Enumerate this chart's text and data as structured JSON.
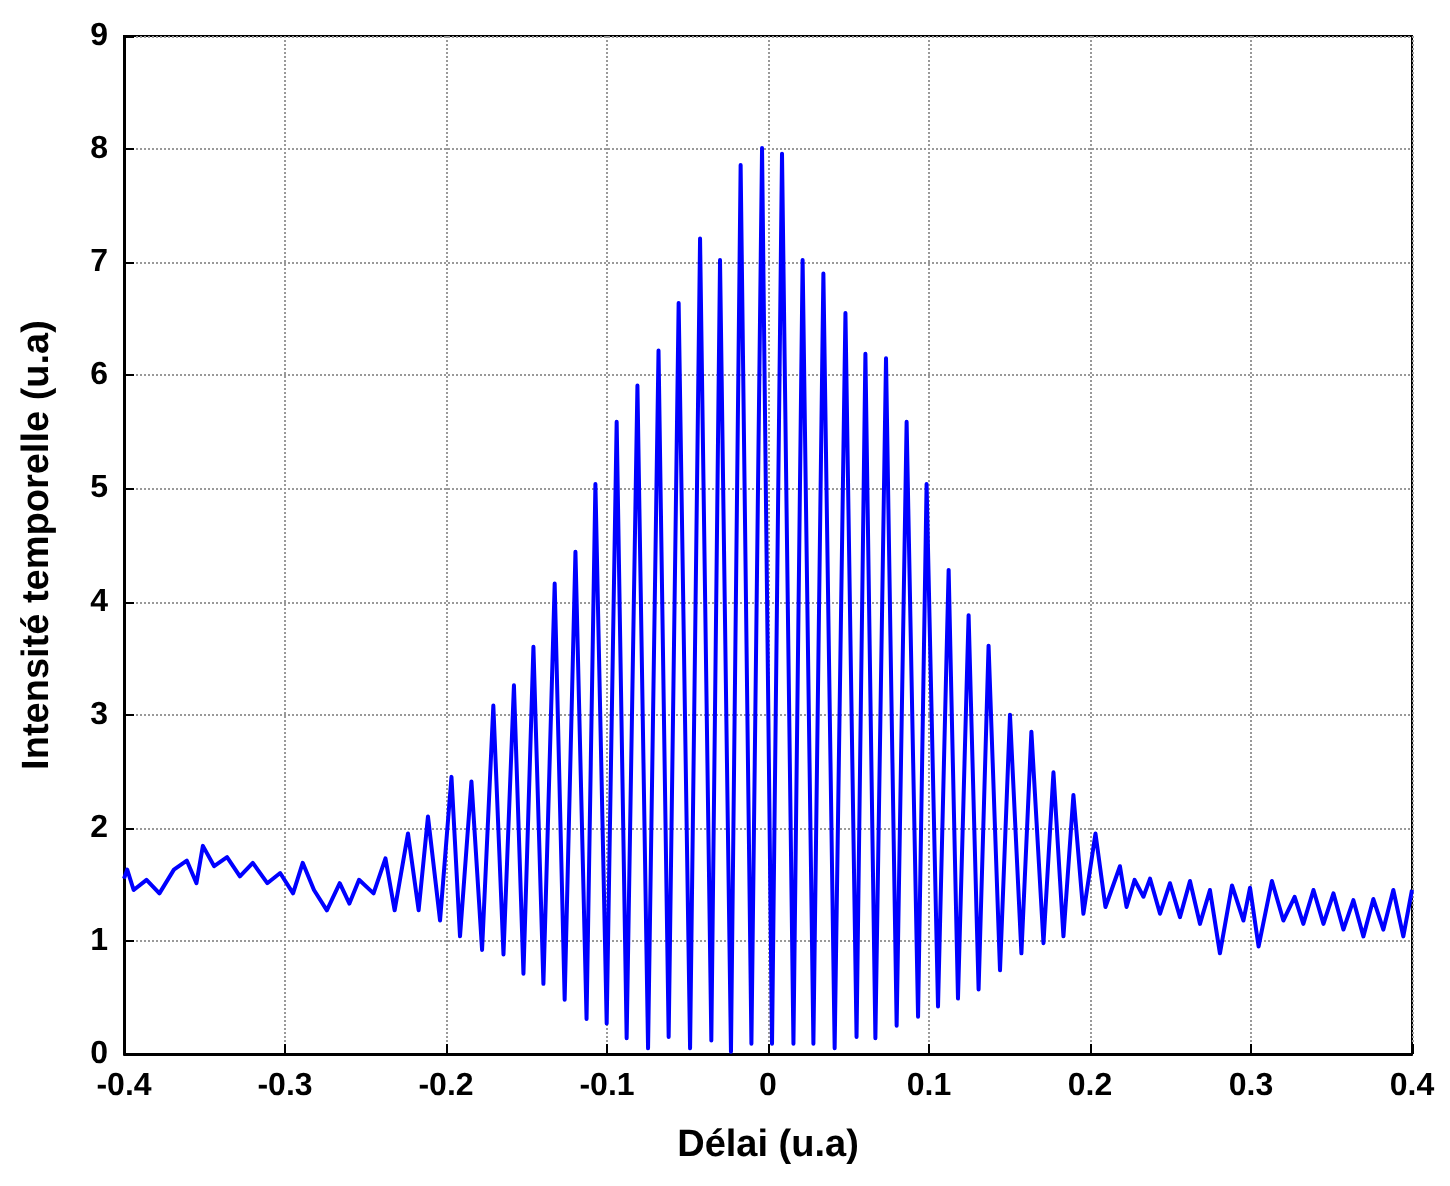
{
  "chart_data": {
    "type": "line",
    "xlabel": "Délai (u.a)",
    "ylabel": "Intensité temporelle (u.a)",
    "xlim": [
      -0.4,
      0.4
    ],
    "xticks": [
      -0.4,
      -0.3,
      -0.2,
      -0.1,
      0,
      0.1,
      0.2,
      0.3,
      0.4
    ],
    "ylim": [
      0,
      9
    ],
    "yticks": [
      0,
      1,
      2,
      3,
      4,
      5,
      6,
      7,
      8,
      9
    ],
    "grid": true,
    "marker": "none",
    "line_style": "solid",
    "series": [
      {
        "color": "#0000ff",
        "x": [
          -0.4,
          -0.398,
          -0.394,
          -0.386,
          -0.378,
          -0.369,
          -0.361,
          -0.355,
          -0.351,
          -0.344,
          -0.336,
          -0.328,
          -0.32,
          -0.311,
          -0.303,
          -0.295,
          -0.289,
          -0.282,
          -0.274,
          -0.266,
          -0.26,
          -0.254,
          -0.245,
          -0.2376,
          -0.2319,
          -0.2236,
          -0.217,
          -0.2112,
          -0.2037,
          -0.1966,
          -0.1913,
          -0.1842,
          -0.1776,
          -0.1706,
          -0.1643,
          -0.1578,
          -0.1519,
          -0.1457,
          -0.1395,
          -0.1325,
          -0.1263,
          -0.1196,
          -0.1127,
          -0.1072,
          -0.1002,
          -0.094,
          -0.0878,
          -0.0811,
          -0.0745,
          -0.068,
          -0.0617,
          -0.0555,
          -0.0484,
          -0.0422,
          -0.0352,
          -0.0298,
          -0.023,
          -0.017,
          -0.0103,
          -0.0037,
          0.0025,
          0.0087,
          0.0158,
          0.0215,
          0.0282,
          0.0344,
          0.0414,
          0.0481,
          0.055,
          0.0605,
          0.0667,
          0.0733,
          0.0799,
          0.0861,
          0.0932,
          0.0985,
          0.1056,
          0.1122,
          0.118,
          0.1246,
          0.1308,
          0.137,
          0.1441,
          0.1503,
          0.1574,
          0.1636,
          0.1711,
          0.1773,
          0.1835,
          0.1897,
          0.1959,
          0.2034,
          0.2096,
          0.2186,
          0.2227,
          0.2277,
          0.2332,
          0.2373,
          0.2435,
          0.2497,
          0.2559,
          0.2621,
          0.2683,
          0.2745,
          0.2807,
          0.2882,
          0.2953,
          0.2994,
          0.3047,
          0.313,
          0.3201,
          0.3271,
          0.3325,
          0.3388,
          0.345,
          0.3512,
          0.3574,
          0.3636,
          0.3698,
          0.376,
          0.3822,
          0.3884,
          0.3946,
          0.4
        ],
        "values": [
          1.55,
          1.63,
          1.45,
          1.54,
          1.42,
          1.63,
          1.71,
          1.51,
          1.84,
          1.66,
          1.74,
          1.57,
          1.69,
          1.51,
          1.6,
          1.42,
          1.69,
          1.45,
          1.27,
          1.51,
          1.33,
          1.54,
          1.42,
          1.73,
          1.27,
          1.95,
          1.27,
          2.1,
          1.18,
          2.45,
          1.04,
          2.41,
          0.92,
          3.08,
          0.88,
          3.26,
          0.71,
          3.6,
          0.62,
          4.16,
          0.48,
          4.44,
          0.31,
          5.04,
          0.27,
          5.59,
          0.14,
          5.91,
          0.05,
          6.22,
          0.15,
          6.64,
          0.05,
          7.21,
          0.12,
          7.02,
          0.02,
          7.86,
          0.09,
          8.01,
          0.09,
          7.96,
          0.09,
          7.02,
          0.09,
          6.9,
          0.05,
          6.55,
          0.15,
          6.19,
          0.14,
          6.15,
          0.25,
          5.59,
          0.33,
          5.04,
          0.42,
          4.28,
          0.49,
          3.88,
          0.57,
          3.61,
          0.74,
          3.0,
          0.89,
          2.85,
          0.98,
          2.49,
          1.04,
          2.29,
          1.24,
          1.95,
          1.3,
          1.66,
          1.3,
          1.54,
          1.39,
          1.55,
          1.24,
          1.51,
          1.21,
          1.53,
          1.15,
          1.45,
          0.89,
          1.49,
          1.18,
          1.47,
          0.95,
          1.53,
          1.18,
          1.39,
          1.15,
          1.45,
          1.15,
          1.42,
          1.1,
          1.36,
          1.04,
          1.37,
          1.1,
          1.45,
          1.04,
          1.45
        ]
      }
    ]
  }
}
